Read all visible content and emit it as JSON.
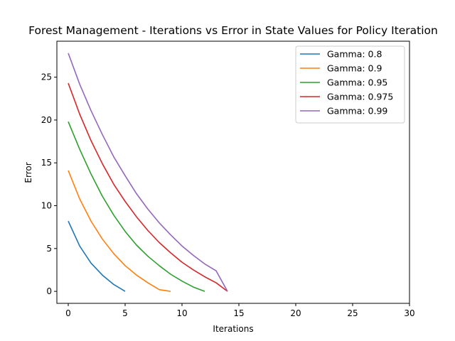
{
  "chart_data": {
    "type": "line",
    "title": "Forest Management - Iterations vs Error in State Values for Policy Iteration",
    "xlabel": "Iterations",
    "ylabel": "Error",
    "xlim": [
      -1,
      30
    ],
    "ylim": [
      -1.4,
      29.2
    ],
    "xticks": [
      0,
      5,
      10,
      15,
      20,
      25,
      30
    ],
    "yticks": [
      0,
      5,
      10,
      15,
      20,
      25
    ],
    "grid": false,
    "legend_position": "top-right",
    "series": [
      {
        "name": "Gamma: 0.8",
        "color": "#1f77b4",
        "x": [
          0,
          1,
          2,
          3,
          4,
          5
        ],
        "y": [
          8.2,
          5.3,
          3.3,
          1.9,
          0.8,
          0.0
        ]
      },
      {
        "name": "Gamma: 0.9",
        "color": "#ff7f0e",
        "x": [
          0,
          1,
          2,
          3,
          4,
          5,
          6,
          7,
          8,
          9
        ],
        "y": [
          14.1,
          10.8,
          8.2,
          6.1,
          4.4,
          3.0,
          1.9,
          1.0,
          0.2,
          0.0
        ]
      },
      {
        "name": "Gamma: 0.95",
        "color": "#2ca02c",
        "x": [
          0,
          1,
          2,
          3,
          4,
          5,
          6,
          7,
          8,
          9,
          10,
          11,
          12
        ],
        "y": [
          19.8,
          16.6,
          13.7,
          11.1,
          8.9,
          7.0,
          5.4,
          4.1,
          3.0,
          2.0,
          1.2,
          0.5,
          0.0
        ]
      },
      {
        "name": "Gamma: 0.975",
        "color": "#d62728",
        "x": [
          0,
          1,
          2,
          3,
          4,
          5,
          6,
          7,
          8,
          9,
          10,
          11,
          12,
          13,
          14
        ],
        "y": [
          24.3,
          20.7,
          17.6,
          14.9,
          12.5,
          10.5,
          8.7,
          7.1,
          5.7,
          4.5,
          3.4,
          2.5,
          1.7,
          1.0,
          0.0
        ]
      },
      {
        "name": "Gamma: 0.99",
        "color": "#9467bd",
        "x": [
          0,
          1,
          2,
          3,
          4,
          5,
          6,
          7,
          8,
          9,
          10,
          11,
          12,
          13,
          14
        ],
        "y": [
          27.8,
          24.2,
          21.1,
          18.3,
          15.7,
          13.5,
          11.4,
          9.6,
          8.0,
          6.6,
          5.3,
          4.2,
          3.2,
          2.4,
          0.0
        ]
      }
    ]
  }
}
